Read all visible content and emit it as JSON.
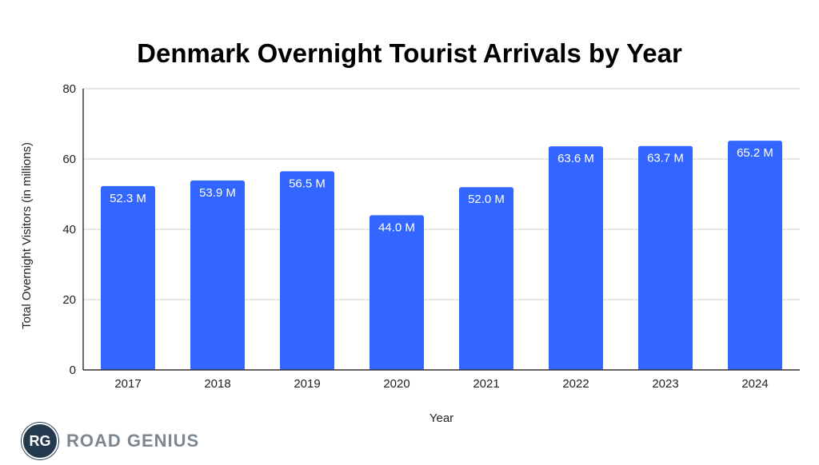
{
  "chart_data": {
    "type": "bar",
    "title": "Denmark Overnight Tourist Arrivals by Year",
    "xlabel": "Year",
    "ylabel": "Total Overnight Visitors (in millions)",
    "categories": [
      "2017",
      "2018",
      "2019",
      "2020",
      "2021",
      "2022",
      "2023",
      "2024"
    ],
    "values": [
      52.3,
      53.9,
      56.5,
      44.0,
      52.0,
      63.6,
      63.7,
      65.2
    ],
    "data_labels": [
      "52.3 M",
      "53.9 M",
      "56.5 M",
      "44.0 M",
      "52.0 M",
      "63.6 M",
      "63.7 M",
      "65.2 M"
    ],
    "ylim": [
      0,
      80
    ],
    "yticks": [
      0,
      20,
      40,
      60,
      80
    ],
    "grid": true,
    "bar_color": "#3366ff"
  },
  "logo": {
    "badge": "RG",
    "text": "ROAD GENIUS"
  }
}
